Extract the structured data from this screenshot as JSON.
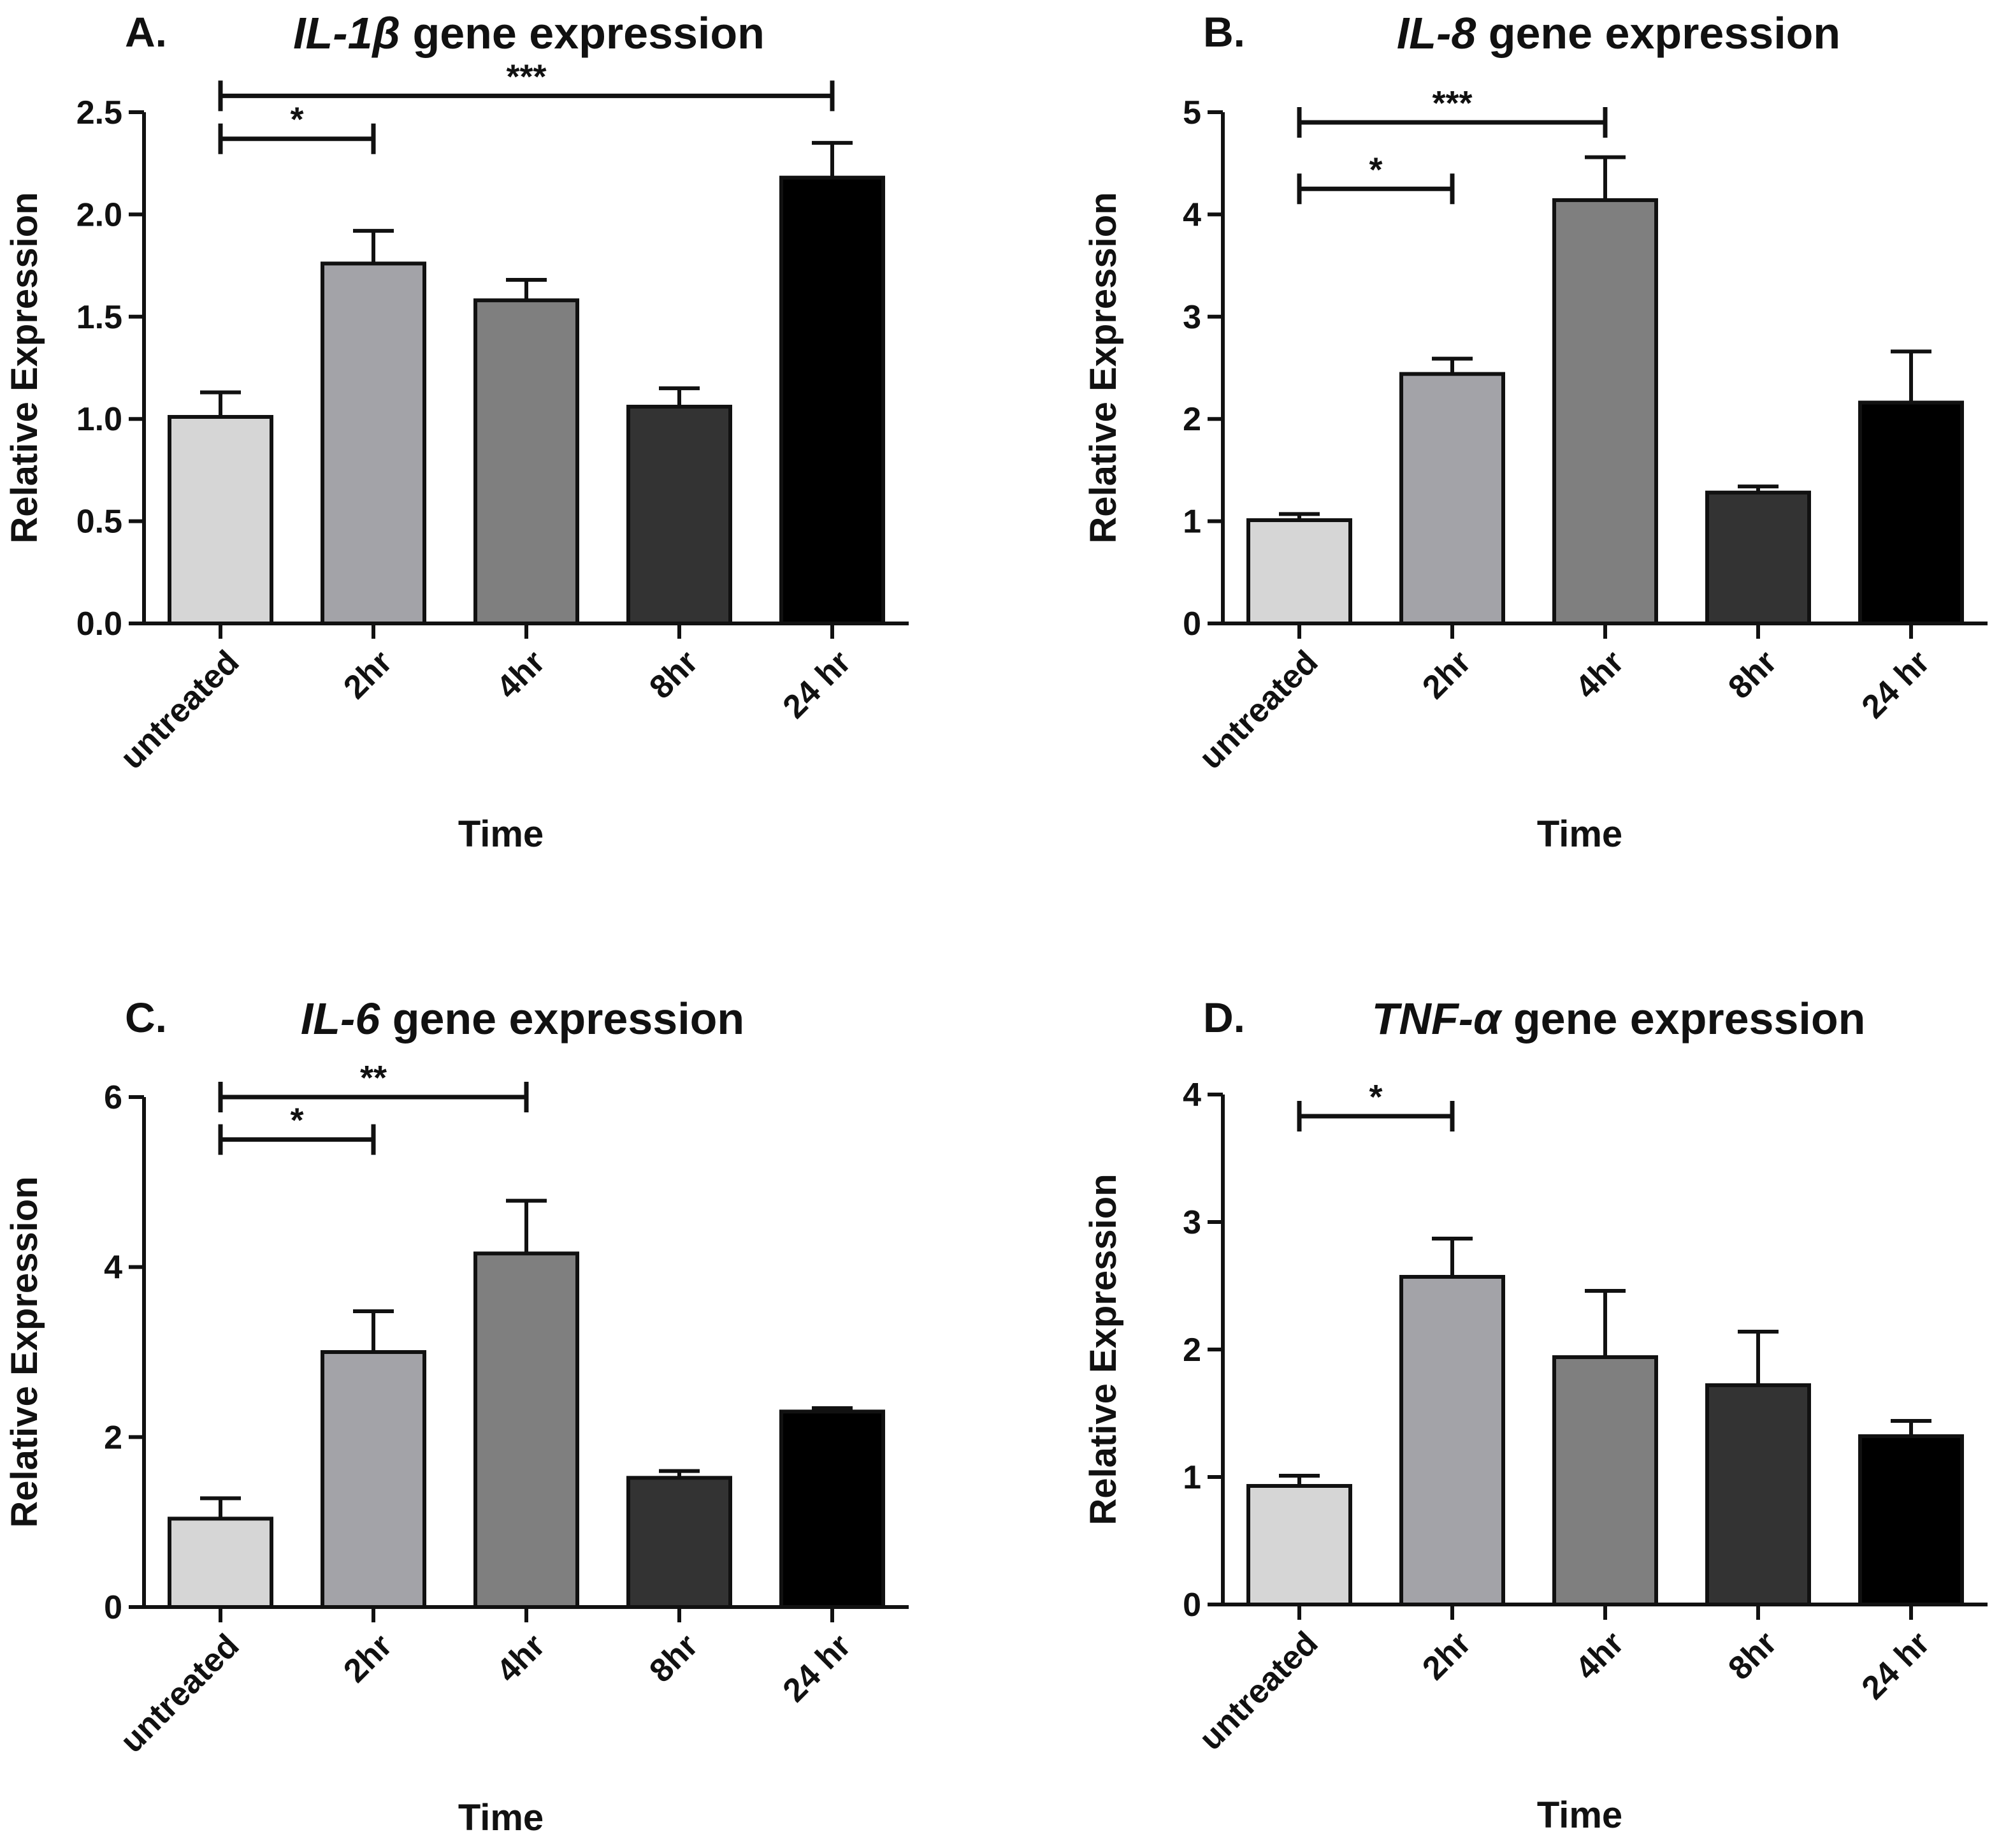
{
  "chart_data": [
    {
      "type": "bar",
      "panel_label": "A.",
      "gene": "IL-1β",
      "title_suffix": "gene expression",
      "xlabel": "Time",
      "ylabel": "Relative Expression",
      "categories": [
        "untreated",
        "2hr",
        "4hr",
        "8hr",
        "24 hr"
      ],
      "values": [
        1.01,
        1.76,
        1.58,
        1.06,
        2.18
      ],
      "errors": [
        0.12,
        0.16,
        0.1,
        0.09,
        0.17
      ],
      "colors": [
        "#d6d6d6",
        "#a3a3a8",
        "#7f7f7f",
        "#333333",
        "#000000"
      ],
      "ylim": [
        0,
        2.5
      ],
      "yticks": [
        "0.0",
        "0.5",
        "1.0",
        "1.5",
        "2.0",
        "2.5"
      ],
      "significance": [
        {
          "from": "untreated",
          "to": "2hr",
          "label": "*",
          "y": 2.37
        },
        {
          "from": "untreated",
          "to": "24 hr",
          "label": "***",
          "y": 2.58
        }
      ]
    },
    {
      "type": "bar",
      "panel_label": "B.",
      "gene": "IL-8",
      "title_suffix": "gene expression",
      "xlabel": "Time",
      "ylabel": "Relative Expression",
      "categories": [
        "untreated",
        "2hr",
        "4hr",
        "8hr",
        "24 hr"
      ],
      "values": [
        1.01,
        2.44,
        4.14,
        1.28,
        2.16
      ],
      "errors": [
        0.06,
        0.15,
        0.42,
        0.06,
        0.5
      ],
      "colors": [
        "#d6d6d6",
        "#a3a3a8",
        "#7f7f7f",
        "#333333",
        "#000000"
      ],
      "ylim": [
        0,
        5
      ],
      "yticks": [
        "0",
        "1",
        "2",
        "3",
        "4",
        "5"
      ],
      "significance": [
        {
          "from": "untreated",
          "to": "2hr",
          "label": "*",
          "y": 4.25
        },
        {
          "from": "untreated",
          "to": "4hr",
          "label": "***",
          "y": 4.9
        }
      ]
    },
    {
      "type": "bar",
      "panel_label": "C.",
      "gene": "IL-6",
      "title_suffix": "gene expression",
      "xlabel": "Time",
      "ylabel": "Relative Expression",
      "categories": [
        "untreated",
        "2hr",
        "4hr",
        "8hr",
        "24 hr"
      ],
      "values": [
        1.04,
        3.0,
        4.16,
        1.52,
        2.3
      ],
      "errors": [
        0.24,
        0.48,
        0.62,
        0.08,
        0.04
      ],
      "colors": [
        "#d6d6d6",
        "#a3a3a8",
        "#7f7f7f",
        "#333333",
        "#000000"
      ],
      "ylim": [
        0,
        6
      ],
      "yticks": [
        "0",
        "2",
        "4",
        "6"
      ],
      "significance": [
        {
          "from": "untreated",
          "to": "2hr",
          "label": "*",
          "y": 5.5
        },
        {
          "from": "untreated",
          "to": "4hr",
          "label": "**",
          "y": 6.0
        }
      ]
    },
    {
      "type": "bar",
      "panel_label": "D.",
      "gene": "TNF-α",
      "title_suffix": "gene expression",
      "xlabel": "Time",
      "ylabel": "Relative Expression",
      "categories": [
        "untreated",
        "2hr",
        "4hr",
        "8hr",
        "24 hr"
      ],
      "values": [
        0.93,
        2.57,
        1.94,
        1.72,
        1.32
      ],
      "errors": [
        0.08,
        0.3,
        0.52,
        0.42,
        0.12
      ],
      "colors": [
        "#d6d6d6",
        "#a3a3a8",
        "#7f7f7f",
        "#333333",
        "#000000"
      ],
      "ylim": [
        0,
        4
      ],
      "yticks": [
        "0",
        "1",
        "2",
        "3",
        "4"
      ],
      "significance": [
        {
          "from": "untreated",
          "to": "2hr",
          "label": "*",
          "y": 3.83
        }
      ]
    }
  ]
}
